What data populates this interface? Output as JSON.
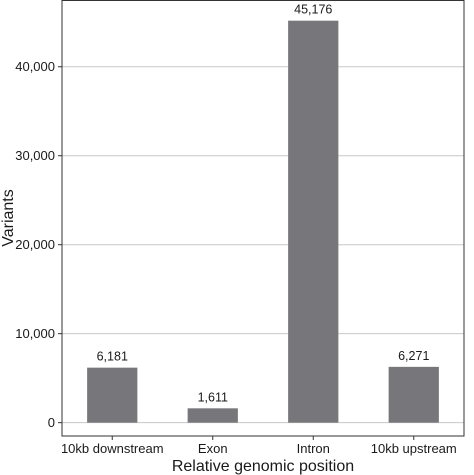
{
  "chart_data": {
    "type": "bar",
    "categories": [
      "10kb downstream",
      "Exon",
      "Intron",
      "10kb upstream"
    ],
    "values": [
      6181,
      1611,
      45176,
      6271
    ],
    "data_labels": [
      "6,181",
      "1,611",
      "45,176",
      "6,271"
    ],
    "xlabel": "Relative genomic position",
    "ylabel": "Variants",
    "ylim": [
      -1500,
      47500
    ],
    "yticks": [
      0,
      10000,
      20000,
      30000,
      40000
    ],
    "ytick_labels": [
      "0",
      "10,000",
      "20,000",
      "30,000",
      "40,000"
    ],
    "grid": "horizontal",
    "legend": "none",
    "bar_color": "#77777b",
    "grid_color": "#c8c8c8",
    "frame_color": "#333333"
  }
}
